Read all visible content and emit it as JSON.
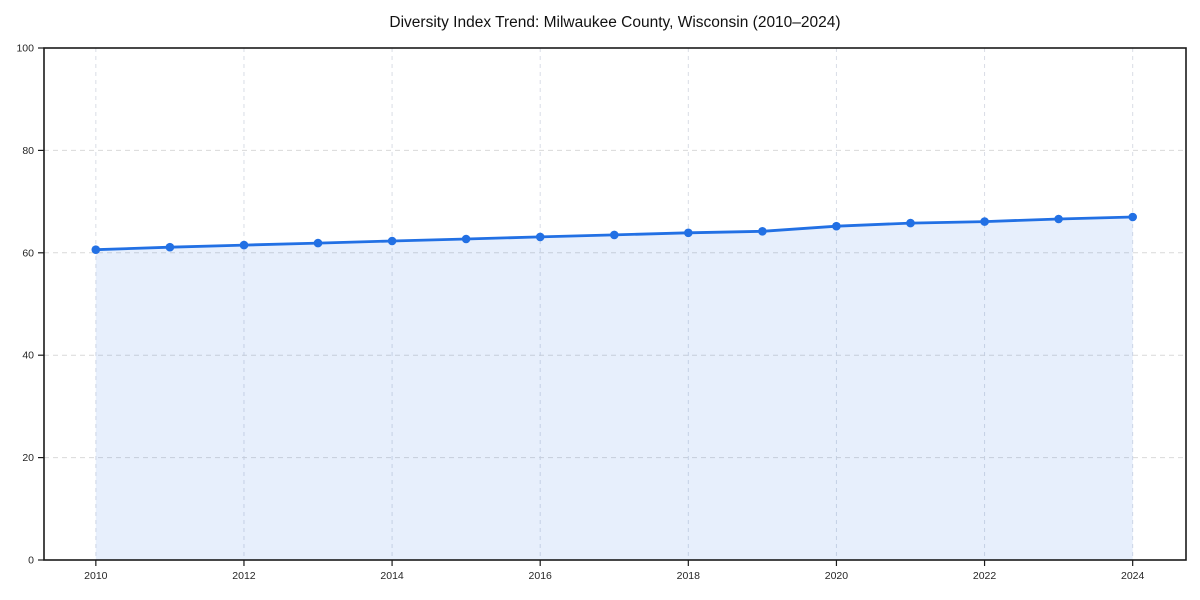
{
  "page": {
    "background": "#ffffff"
  },
  "chart_data": {
    "type": "area",
    "title": "Diversity Index Trend: Milwaukee County, Wisconsin (2010–2024)",
    "x": [
      2010,
      2011,
      2012,
      2013,
      2014,
      2015,
      2016,
      2017,
      2018,
      2019,
      2020,
      2021,
      2022,
      2023,
      2024
    ],
    "values": [
      60.6,
      61.1,
      61.5,
      61.9,
      62.3,
      62.7,
      63.1,
      63.5,
      63.9,
      64.2,
      65.2,
      65.8,
      66.1,
      66.6,
      67.0
    ],
    "xlabel": "",
    "ylabel": "",
    "xlim": [
      2009.3,
      2024.72
    ],
    "ylim": [
      0,
      100
    ],
    "xticks": [
      2010,
      2012,
      2014,
      2016,
      2018,
      2020,
      2022,
      2024
    ],
    "yticks": [
      0,
      20,
      40,
      60,
      80,
      100
    ],
    "grid": {
      "style": "dashed",
      "horizontal": true,
      "vertical": true
    },
    "legend": "none",
    "marker": "circle",
    "line_width": 2.8,
    "marker_radius": 4.3,
    "fill_opacity": 0.11,
    "colors": {
      "line": "#2270e4",
      "fill": "#2270e4",
      "grid_horizontal": "#d9d9d9",
      "grid_vertical": "#d9dde6",
      "spine": "#1a1a1a",
      "tick": "#1a1a1a",
      "tick_label": "#262626",
      "title": "#111111",
      "background": "#ffffff"
    }
  }
}
